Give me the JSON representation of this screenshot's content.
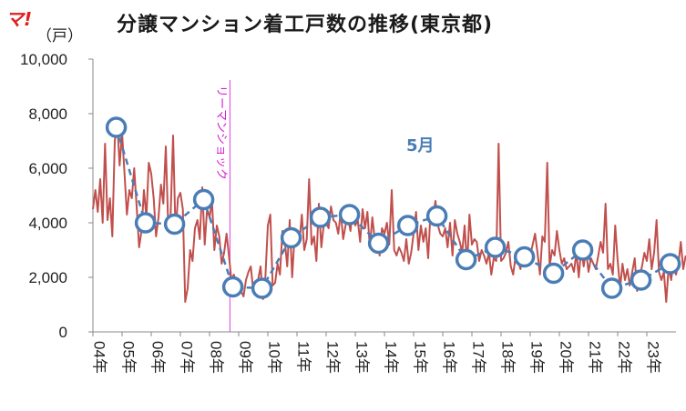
{
  "chart_data": {
    "type": "line",
    "title": "分譲マンション着工戸数の推移(東京都)",
    "unit_label": "（戸）",
    "logo": "マ!",
    "ylim": [
      0,
      10000
    ],
    "yticks": [
      "0",
      "2,000",
      "4,000",
      "6,000",
      "8,000",
      "10,000"
    ],
    "yticks_values": [
      0,
      2000,
      4000,
      6000,
      8000,
      10000
    ],
    "xticks": [
      "04年",
      "05年",
      "06年",
      "07年",
      "08年",
      "09年",
      "10年",
      "11年",
      "12年",
      "13年",
      "14年",
      "15年",
      "16年",
      "17年",
      "18年",
      "19年",
      "20年",
      "21年",
      "22年",
      "23年"
    ],
    "annotation": {
      "label": "リーマンショック",
      "x_year": 2008.7
    },
    "may_label": "5月",
    "colors": {
      "monthly": "#c0504d",
      "may": "#4a7db5",
      "annotation": "#e040e0",
      "axis": "#888888"
    },
    "monthly_start_year": 2004,
    "monthly_values": [
      4500,
      5200,
      4400,
      5600,
      4000,
      6900,
      4100,
      4900,
      3500,
      7000,
      7700,
      6100,
      7300,
      5800,
      4300,
      5200,
      4900,
      6000,
      4600,
      3100,
      3700,
      5200,
      4200,
      6200,
      5800,
      4900,
      3500,
      4200,
      5400,
      4700,
      6800,
      3800,
      4300,
      7200,
      3600,
      4900,
      5100,
      4500,
      1100,
      1600,
      3000,
      2600,
      3800,
      4100,
      3400,
      5300,
      3200,
      4500,
      4200,
      4800,
      3000,
      3900,
      3500,
      2500,
      2900,
      3600,
      2800,
      1900,
      2100,
      1800,
      1700,
      1500,
      1300,
      1900,
      2200,
      2400,
      1500,
      1600,
      1900,
      2400,
      1200,
      2000,
      3900,
      4300,
      1700,
      1800,
      2500,
      2100,
      3700,
      3300,
      2400,
      4100,
      2000,
      3500,
      3200,
      3300,
      4300,
      3000,
      3400,
      5600,
      3200,
      3500,
      2600,
      4700,
      3100,
      3900,
      4000,
      3800,
      4600,
      4100,
      4000,
      3600,
      4400,
      3400,
      3900,
      4200,
      3700,
      4600,
      3900,
      4100,
      3300,
      4500,
      3800,
      4400,
      3100,
      4200,
      3400,
      3600,
      2800,
      3800,
      3600,
      4000,
      3200,
      5200,
      3000,
      2800,
      3100,
      2900,
      2600,
      3400,
      2500,
      2900,
      3600,
      4400,
      3000,
      3900,
      3300,
      3800,
      2700,
      4500,
      4200,
      4800,
      3900,
      3600,
      3500,
      3800,
      3100,
      4000,
      2800,
      4100,
      3600,
      3300,
      2900,
      3900,
      2400,
      4300,
      3200,
      3400,
      3300,
      2600,
      3000,
      2800,
      2500,
      2900,
      2100,
      2700,
      2600,
      6900,
      2600,
      2700,
      2900,
      3300,
      2400,
      2100,
      2800,
      2600,
      2300,
      3100,
      2500,
      2900,
      2800,
      3200,
      3600,
      2900,
      2100,
      3500,
      3300,
      6200,
      2400,
      3000,
      2800,
      3700,
      3000,
      2500,
      2700,
      2300,
      2400,
      2500,
      2200,
      2900,
      2000,
      3100,
      2400,
      3000,
      2200,
      2700,
      2500,
      2300,
      2800,
      3300,
      2900,
      4700,
      2300,
      2500,
      2100,
      3900,
      2600,
      1600,
      2500,
      1900,
      2300,
      1700,
      2200,
      2700,
      1500,
      2000,
      2400,
      2900,
      2600,
      3400,
      2300,
      2900,
      4100,
      2200,
      1900,
      2200,
      1100,
      2400,
      1900,
      2600,
      2100,
      2500,
      3300,
      2300,
      2800
    ],
    "may_series": {
      "name": "5月",
      "x": [
        2004.8,
        2005.8,
        2006.8,
        2007.8,
        2008.8,
        2009.8,
        2010.8,
        2011.8,
        2012.8,
        2013.8,
        2014.8,
        2015.8,
        2016.8,
        2017.8,
        2018.8,
        2019.8,
        2020.8,
        2021.8,
        2022.8,
        2023.8
      ],
      "values": [
        7500,
        4000,
        3950,
        4850,
        1650,
        1600,
        3450,
        4200,
        4300,
        3250,
        3900,
        4250,
        2650,
        3100,
        2750,
        2150,
        3000,
        1600,
        1900,
        2500
      ]
    }
  }
}
